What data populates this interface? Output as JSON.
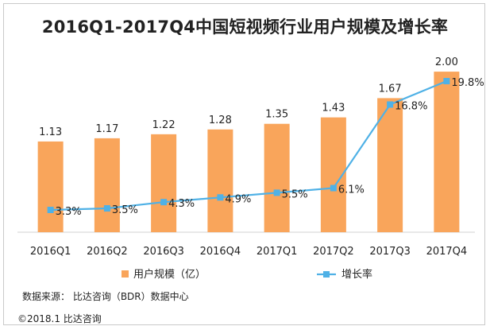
{
  "chart_data": {
    "type": "bar+line",
    "title": "2016Q1-2017Q4中国短视频行业用户规模及增长率",
    "categories": [
      "2016Q1",
      "2016Q2",
      "2016Q3",
      "2016Q4",
      "2017Q1",
      "2017Q2",
      "2017Q3",
      "2017Q4"
    ],
    "series": [
      {
        "name": "用户规模（亿）",
        "kind": "bar",
        "color": "#F9A55B",
        "values": [
          1.13,
          1.17,
          1.22,
          1.28,
          1.35,
          1.43,
          1.67,
          2.0
        ],
        "labels": [
          "1.13",
          "1.17",
          "1.22",
          "1.28",
          "1.35",
          "1.43",
          "1.67",
          "2.00"
        ]
      },
      {
        "name": "增长率",
        "kind": "line",
        "color": "#4FB1E6",
        "values": [
          3.3,
          3.5,
          4.3,
          4.9,
          5.5,
          6.1,
          16.8,
          19.8
        ],
        "labels": [
          "3.3%",
          "3.5%",
          "4.3%",
          "4.9%",
          "5.5%",
          "6.1%",
          "16.8%",
          "19.8%"
        ]
      }
    ],
    "bar_ylim": [
      0,
      2.1
    ],
    "line_ylim": [
      -10,
      21
    ],
    "legend_position": "bottom"
  },
  "source_text": "数据来源： 比达咨询（BDR）数据中心",
  "footer_text": "©2018.1   比达咨询"
}
